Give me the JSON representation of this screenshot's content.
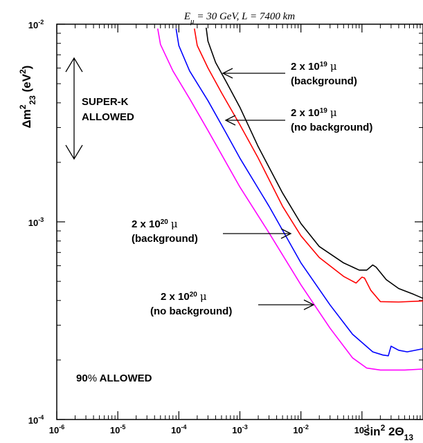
{
  "chart_data": {
    "type": "line",
    "title": {
      "pre": "E",
      "sub": "μ",
      "post": " = 30 GeV, L = 7400 km"
    },
    "xscale": "log",
    "yscale": "log",
    "xlim": [
      1e-06,
      1
    ],
    "ylim": [
      0.0001,
      0.01
    ],
    "x_ticks": [
      {
        "base": "10",
        "exp": "-6"
      },
      {
        "base": "10",
        "exp": "-5"
      },
      {
        "base": "10",
        "exp": "-4"
      },
      {
        "base": "10",
        "exp": "-3"
      },
      {
        "base": "10",
        "exp": "-2"
      },
      {
        "base": "10",
        "exp": "-1"
      }
    ],
    "y_ticks": [
      {
        "base": "10",
        "exp": "-4"
      },
      {
        "base": "10",
        "exp": "-3"
      },
      {
        "base": "10",
        "exp": "-2"
      }
    ],
    "xlabel": {
      "text": "sin",
      "sup": "2",
      "mid": " 2Θ",
      "sub": "13"
    },
    "ylabel": {
      "pre": "Δm",
      "sup": "2",
      "sub": "23",
      "post": " (eV",
      "sup2": "2",
      "end": ")"
    },
    "series": [
      {
        "color": "#000000",
        "points": [
          [
            0.00028,
            0.0096
          ],
          [
            0.0003,
            0.0082
          ],
          [
            0.0004,
            0.0064
          ],
          [
            0.0006,
            0.0051
          ],
          [
            0.001,
            0.0038
          ],
          [
            0.002,
            0.0024
          ],
          [
            0.005,
            0.0014
          ],
          [
            0.01,
            0.00098
          ],
          [
            0.02,
            0.00075
          ],
          [
            0.05,
            0.00062
          ],
          [
            0.09,
            0.00057
          ],
          [
            0.12,
            0.00057
          ],
          [
            0.15,
            0.000605
          ],
          [
            0.17,
            0.00059
          ],
          [
            0.25,
            0.00051
          ],
          [
            0.4,
            0.00046
          ],
          [
            0.7,
            0.00043
          ],
          [
            1.0,
            0.00041
          ]
        ]
      },
      {
        "color": "#ff0000",
        "points": [
          [
            0.00018,
            0.0095
          ],
          [
            0.0002,
            0.0078
          ],
          [
            0.0003,
            0.006
          ],
          [
            0.0005,
            0.0045
          ],
          [
            0.001,
            0.0031
          ],
          [
            0.002,
            0.0021
          ],
          [
            0.005,
            0.0012
          ],
          [
            0.01,
            0.00085
          ],
          [
            0.02,
            0.00066
          ],
          [
            0.05,
            0.00053
          ],
          [
            0.08,
            0.00049
          ],
          [
            0.1,
            0.000525
          ],
          [
            0.11,
            0.00052
          ],
          [
            0.14,
            0.00045
          ],
          [
            0.2,
            0.000395
          ],
          [
            0.4,
            0.000393
          ],
          [
            1.0,
            0.000398
          ]
        ]
      },
      {
        "color": "#0000ff",
        "points": [
          [
            9e-05,
            0.0095
          ],
          [
            0.0001,
            0.0078
          ],
          [
            0.00015,
            0.0058
          ],
          [
            0.0003,
            0.0041
          ],
          [
            0.0006,
            0.0028
          ],
          [
            0.001,
            0.0021
          ],
          [
            0.003,
            0.0012
          ],
          [
            0.01,
            0.00062
          ],
          [
            0.03,
            0.00038
          ],
          [
            0.07,
            0.00027
          ],
          [
            0.15,
            0.00022
          ],
          [
            0.22,
            0.000212
          ],
          [
            0.27,
            0.00021
          ],
          [
            0.3,
            0.000235
          ],
          [
            0.4,
            0.000224
          ],
          [
            0.55,
            0.00022
          ],
          [
            1.0,
            0.000228
          ]
        ]
      },
      {
        "color": "#ff00ff",
        "points": [
          [
            4.5e-05,
            0.0095
          ],
          [
            5e-05,
            0.0079
          ],
          [
            8e-05,
            0.0058
          ],
          [
            0.00015,
            0.0042
          ],
          [
            0.0003,
            0.0029
          ],
          [
            0.001,
            0.0015
          ],
          [
            0.003,
            0.00088
          ],
          [
            0.01,
            0.00048
          ],
          [
            0.03,
            0.00029
          ],
          [
            0.07,
            0.000205
          ],
          [
            0.12,
            0.000182
          ],
          [
            0.2,
            0.000178
          ],
          [
            0.5,
            0.000178
          ],
          [
            1.0,
            0.00018
          ]
        ]
      }
    ],
    "labels": {
      "superk": [
        "SUPER-K",
        "ALLOWED"
      ],
      "bg19": {
        "l1": "2 x 10",
        "exp": "19",
        "mu": "μ",
        "l2": "(background)"
      },
      "nbg19": {
        "l1": "2 x 10",
        "exp": "19",
        "mu": "μ",
        "l2": "(no background)"
      },
      "bg20": {
        "l1": "2 x 10",
        "exp": "20",
        "mu": "μ",
        "l2": "(background)"
      },
      "nbg20": {
        "l1": "2 x 10",
        "exp": "20",
        "mu": "μ",
        "l2": "(no background)"
      },
      "allowed": {
        "a": "90",
        "pct": "%",
        "b": " ALLOWED"
      }
    },
    "grid": false,
    "legend": "none"
  }
}
